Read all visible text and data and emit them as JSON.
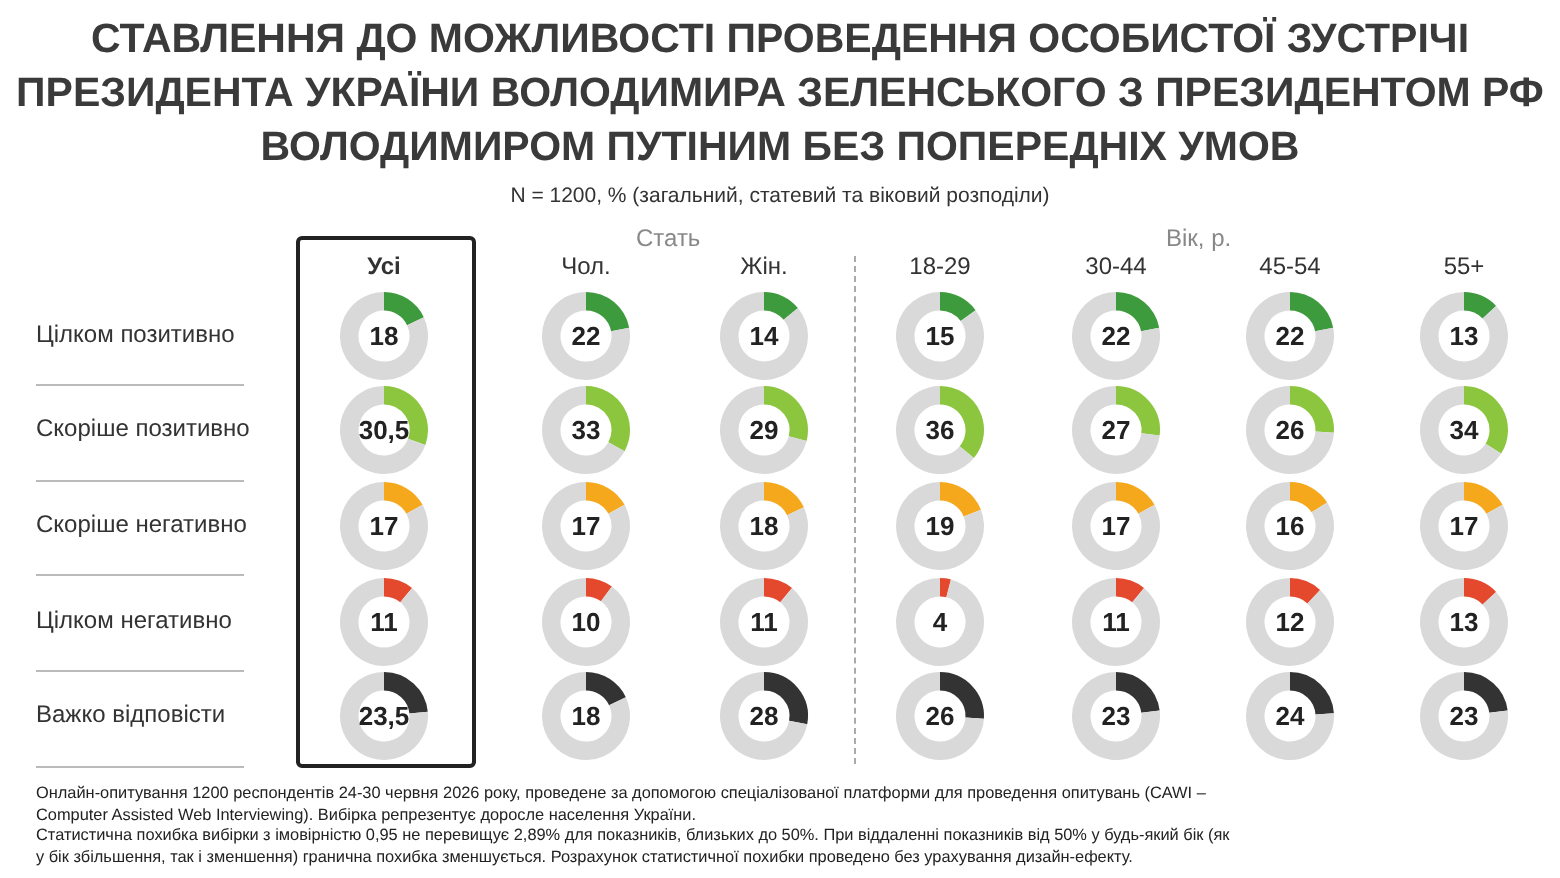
{
  "chart_data": [
    {
      "type": "other",
      "title": "СТАВЛЕННЯ ДО МОЖЛИВОСТІ ПРОВЕДЕННЯ ОСОБИСТОЇ ЗУСТРІЧІ ПРЕЗИДЕНТА УКРАЇНИ ВОЛОДИМИРА ЗЕЛЕНСЬКОГО З ПРЕЗИДЕНТОМ РФ ВОЛОДИМИРОМ ПУТІНИМ БЕЗ ПОПЕРЕДНІХ УМОВ",
      "subtitle": "N = 1200, % (загальний, статевий та віковий розподіли)",
      "annotations": [
        "Стать",
        "Вік, р.",
        "Онлайн-опитування 1200 респондентів 24-30 червня 2026 року, проведене за допомогою спеціалізованої платформи для проведення опитувань (CAWI – Computer Assisted Web Interviewing). Вибірка репрезентує доросле населення України.",
        "Статистична похибка вибірки з імовірністю 0,95 не перевищує 2,89% для показників, близьких до 50%. При віддаленні показників від 50% у будь-який бік (як у бік збільшення, так і зменшення) гранична похибка зменшується. Розрахунок статистичної похибки проведено без урахування дизайн-ефекту."
      ]
    },
    {
      "type": "donut",
      "title": "Усі",
      "ylabel": "Цілком позитивно",
      "categories": [
        null,
        null
      ],
      "values": [
        18,
        82
      ],
      "colors": [
        "#3d9a3d",
        "#d9d9d9"
      ],
      "annotations": [
        "18"
      ]
    },
    {
      "type": "donut",
      "title": "Чол.",
      "categories": [
        null,
        null
      ],
      "values": [
        22,
        78
      ],
      "colors": [
        "#3d9a3d",
        "#d9d9d9"
      ],
      "annotations": [
        "22"
      ]
    },
    {
      "type": "donut",
      "title": "Жін.",
      "categories": [
        null,
        null
      ],
      "values": [
        14,
        86
      ],
      "colors": [
        "#3d9a3d",
        "#d9d9d9"
      ],
      "annotations": [
        "14"
      ]
    },
    {
      "type": "donut",
      "title": "18-29",
      "categories": [
        null,
        null
      ],
      "values": [
        15,
        85
      ],
      "colors": [
        "#3d9a3d",
        "#d9d9d9"
      ],
      "annotations": [
        "15"
      ]
    },
    {
      "type": "donut",
      "title": "30-44",
      "categories": [
        null,
        null
      ],
      "values": [
        22,
        78
      ],
      "colors": [
        "#3d9a3d",
        "#d9d9d9"
      ],
      "annotations": [
        "22"
      ]
    },
    {
      "type": "donut",
      "title": "45-54",
      "categories": [
        null,
        null
      ],
      "values": [
        22,
        78
      ],
      "colors": [
        "#3d9a3d",
        "#d9d9d9"
      ],
      "annotations": [
        "22"
      ]
    },
    {
      "type": "donut",
      "title": "55+",
      "categories": [
        null,
        null
      ],
      "values": [
        13,
        87
      ],
      "colors": [
        "#3d9a3d",
        "#d9d9d9"
      ],
      "annotations": [
        "13"
      ]
    },
    {
      "type": "donut",
      "ylabel": "Скоріше позитивно",
      "categories": [
        null,
        null
      ],
      "values": [
        30.5,
        69.5
      ],
      "colors": [
        "#8cc63f",
        "#d9d9d9"
      ],
      "annotations": [
        "30,5"
      ]
    },
    {
      "type": "donut",
      "categories": [
        null,
        null
      ],
      "values": [
        33,
        67
      ],
      "colors": [
        "#8cc63f",
        "#d9d9d9"
      ],
      "annotations": [
        "33"
      ]
    },
    {
      "type": "donut",
      "categories": [
        null,
        null
      ],
      "values": [
        29,
        71
      ],
      "colors": [
        "#8cc63f",
        "#d9d9d9"
      ],
      "annotations": [
        "29"
      ]
    },
    {
      "type": "donut",
      "categories": [
        null,
        null
      ],
      "values": [
        36,
        64
      ],
      "colors": [
        "#8cc63f",
        "#d9d9d9"
      ],
      "annotations": [
        "36"
      ]
    },
    {
      "type": "donut",
      "categories": [
        null,
        null
      ],
      "values": [
        27,
        73
      ],
      "colors": [
        "#8cc63f",
        "#d9d9d9"
      ],
      "annotations": [
        "27"
      ]
    },
    {
      "type": "donut",
      "categories": [
        null,
        null
      ],
      "values": [
        26,
        74
      ],
      "colors": [
        "#8cc63f",
        "#d9d9d9"
      ],
      "annotations": [
        "26"
      ]
    },
    {
      "type": "donut",
      "categories": [
        null,
        null
      ],
      "values": [
        34,
        66
      ],
      "colors": [
        "#8cc63f",
        "#d9d9d9"
      ],
      "annotations": [
        "34"
      ]
    },
    {
      "type": "donut",
      "ylabel": "Скоріше негативно",
      "categories": [
        null,
        null
      ],
      "values": [
        17,
        83
      ],
      "colors": [
        "#f5a81c",
        "#d9d9d9"
      ],
      "annotations": [
        "17"
      ]
    },
    {
      "type": "donut",
      "categories": [
        null,
        null
      ],
      "values": [
        17,
        83
      ],
      "colors": [
        "#f5a81c",
        "#d9d9d9"
      ],
      "annotations": [
        "17"
      ]
    },
    {
      "type": "donut",
      "categories": [
        null,
        null
      ],
      "values": [
        18,
        82
      ],
      "colors": [
        "#f5a81c",
        "#d9d9d9"
      ],
      "annotations": [
        "18"
      ]
    },
    {
      "type": "donut",
      "categories": [
        null,
        null
      ],
      "values": [
        19,
        81
      ],
      "colors": [
        "#f5a81c",
        "#d9d9d9"
      ],
      "annotations": [
        "19"
      ]
    },
    {
      "type": "donut",
      "categories": [
        null,
        null
      ],
      "values": [
        17,
        83
      ],
      "colors": [
        "#f5a81c",
        "#d9d9d9"
      ],
      "annotations": [
        "17"
      ]
    },
    {
      "type": "donut",
      "categories": [
        null,
        null
      ],
      "values": [
        16,
        84
      ],
      "colors": [
        "#f5a81c",
        "#d9d9d9"
      ],
      "annotations": [
        "16"
      ]
    },
    {
      "type": "donut",
      "categories": [
        null,
        null
      ],
      "values": [
        17,
        83
      ],
      "colors": [
        "#f5a81c",
        "#d9d9d9"
      ],
      "annotations": [
        "17"
      ]
    },
    {
      "type": "donut",
      "ylabel": "Цілком негативно",
      "categories": [
        null,
        null
      ],
      "values": [
        11,
        89
      ],
      "colors": [
        "#e5492d",
        "#d9d9d9"
      ],
      "annotations": [
        "11"
      ]
    },
    {
      "type": "donut",
      "categories": [
        null,
        null
      ],
      "values": [
        10,
        90
      ],
      "colors": [
        "#e5492d",
        "#d9d9d9"
      ],
      "annotations": [
        "10"
      ]
    },
    {
      "type": "donut",
      "categories": [
        null,
        null
      ],
      "values": [
        11,
        89
      ],
      "colors": [
        "#e5492d",
        "#d9d9d9"
      ],
      "annotations": [
        "11"
      ]
    },
    {
      "type": "donut",
      "categories": [
        null,
        null
      ],
      "values": [
        4,
        96
      ],
      "colors": [
        "#e5492d",
        "#d9d9d9"
      ],
      "annotations": [
        "4"
      ]
    },
    {
      "type": "donut",
      "categories": [
        null,
        null
      ],
      "values": [
        11,
        89
      ],
      "colors": [
        "#e5492d",
        "#d9d9d9"
      ],
      "annotations": [
        "11"
      ]
    },
    {
      "type": "donut",
      "categories": [
        null,
        null
      ],
      "values": [
        12,
        88
      ],
      "colors": [
        "#e5492d",
        "#d9d9d9"
      ],
      "annotations": [
        "12"
      ]
    },
    {
      "type": "donut",
      "categories": [
        null,
        null
      ],
      "values": [
        13,
        87
      ],
      "colors": [
        "#e5492d",
        "#d9d9d9"
      ],
      "annotations": [
        "13"
      ]
    },
    {
      "type": "donut",
      "ylabel": "Важко відповісти",
      "categories": [
        null,
        null
      ],
      "values": [
        23.5,
        76.5
      ],
      "colors": [
        "#333333",
        "#d9d9d9"
      ],
      "annotations": [
        "23,5"
      ]
    },
    {
      "type": "donut",
      "categories": [
        null,
        null
      ],
      "values": [
        18,
        82
      ],
      "colors": [
        "#333333",
        "#d9d9d9"
      ],
      "annotations": [
        "18"
      ]
    },
    {
      "type": "donut",
      "categories": [
        null,
        null
      ],
      "values": [
        28,
        72
      ],
      "colors": [
        "#333333",
        "#d9d9d9"
      ],
      "annotations": [
        "28"
      ]
    },
    {
      "type": "donut",
      "categories": [
        null,
        null
      ],
      "values": [
        26,
        74
      ],
      "colors": [
        "#333333",
        "#d9d9d9"
      ],
      "annotations": [
        "26"
      ]
    },
    {
      "type": "donut",
      "categories": [
        null,
        null
      ],
      "values": [
        23,
        77
      ],
      "colors": [
        "#333333",
        "#d9d9d9"
      ],
      "annotations": [
        "23"
      ]
    },
    {
      "type": "donut",
      "categories": [
        null,
        null
      ],
      "values": [
        24,
        76
      ],
      "colors": [
        "#333333",
        "#d9d9d9"
      ],
      "annotations": [
        "24"
      ]
    },
    {
      "type": "donut",
      "categories": [
        null,
        null
      ],
      "values": [
        23,
        77
      ],
      "colors": [
        "#333333",
        "#d9d9d9"
      ],
      "annotations": [
        "23"
      ]
    }
  ]
}
